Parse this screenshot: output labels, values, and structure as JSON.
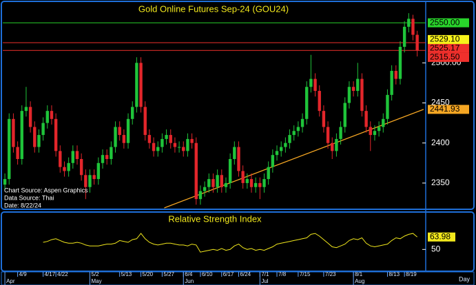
{
  "chart_data": [
    {
      "type": "candlestick",
      "title": "Gold Online Futures Sep-24 (GOU24)",
      "xlim": [
        -0.5,
        99
      ],
      "ylim": [
        2319,
        2575
      ],
      "yticks": [
        2350,
        2400,
        2450,
        {
          "value": 2500,
          "label": "2500.00"
        }
      ],
      "xticks": [
        {
          "value": 3,
          "label": "4/9"
        },
        {
          "value": 9,
          "label": "4/17"
        },
        {
          "value": 12,
          "label": "4/22"
        },
        {
          "value": 20,
          "label": "5/2"
        },
        {
          "value": 27,
          "label": "5/13"
        },
        {
          "value": 32,
          "label": "5/20"
        },
        {
          "value": 37,
          "label": "5/27"
        },
        {
          "value": 42,
          "label": "6/4"
        },
        {
          "value": 46,
          "label": "6/10"
        },
        {
          "value": 51,
          "label": "6/17"
        },
        {
          "value": 55,
          "label": "6/24"
        },
        {
          "value": 60,
          "label": "7/1"
        },
        {
          "value": 64,
          "label": "7/8"
        },
        {
          "value": 69,
          "label": "7/15"
        },
        {
          "value": 75,
          "label": "7/23"
        },
        {
          "value": 82,
          "label": "8/1"
        },
        {
          "value": 90,
          "label": "8/13"
        },
        {
          "value": 94,
          "label": "8/19"
        }
      ],
      "months": [
        {
          "value": 0,
          "label": "Apr"
        },
        {
          "value": 20,
          "label": "May"
        },
        {
          "value": 42,
          "label": "Jun"
        },
        {
          "value": 60,
          "label": "Jul"
        },
        {
          "value": 82,
          "label": "Aug"
        }
      ],
      "xlabel": "Day",
      "up_color": "#1fc43a",
      "down_color": "#e3262b",
      "open": [
        2348,
        2355,
        2430,
        2395,
        2380,
        2440,
        2445,
        2420,
        2395,
        2410,
        2425,
        2440,
        2430,
        2390,
        2370,
        2365,
        2375,
        2390,
        2380,
        2360,
        2345,
        2360,
        2355,
        2375,
        2385,
        2380,
        2395,
        2420,
        2410,
        2400,
        2430,
        2445,
        2500,
        2445,
        2410,
        2400,
        2390,
        2395,
        2405,
        2410,
        2400,
        2395,
        2395,
        2390,
        2405,
        2400,
        2330,
        2340,
        2345,
        2355,
        2345,
        2360,
        2345,
        2350,
        2380,
        2395,
        2365,
        2350,
        2355,
        2345,
        2350,
        2345,
        2355,
        2370,
        2385,
        2390,
        2395,
        2400,
        2410,
        2415,
        2420,
        2430,
        2470,
        2480,
        2465,
        2440,
        2420,
        2400,
        2390,
        2405,
        2420,
        2450,
        2470,
        2465,
        2480,
        2440,
        2420,
        2410,
        2415,
        2420,
        2430,
        2460,
        2490,
        2480,
        2520,
        2545,
        2555,
        2535
      ],
      "high": [
        2362,
        2437,
        2437,
        2402,
        2447,
        2470,
        2452,
        2427,
        2417,
        2432,
        2447,
        2447,
        2437,
        2397,
        2377,
        2382,
        2397,
        2397,
        2387,
        2367,
        2367,
        2367,
        2382,
        2392,
        2392,
        2402,
        2427,
        2427,
        2417,
        2437,
        2452,
        2507,
        2507,
        2452,
        2417,
        2407,
        2402,
        2412,
        2417,
        2417,
        2407,
        2402,
        2402,
        2412,
        2412,
        2407,
        2347,
        2352,
        2362,
        2362,
        2367,
        2367,
        2357,
        2387,
        2402,
        2402,
        2372,
        2362,
        2362,
        2357,
        2357,
        2362,
        2377,
        2392,
        2397,
        2402,
        2407,
        2417,
        2422,
        2427,
        2437,
        2477,
        2510,
        2487,
        2472,
        2447,
        2427,
        2407,
        2412,
        2427,
        2457,
        2477,
        2477,
        2500,
        2487,
        2447,
        2427,
        2422,
        2427,
        2437,
        2467,
        2497,
        2497,
        2527,
        2552,
        2562,
        2560,
        2540
      ],
      "low": [
        2341,
        2348,
        2388,
        2373,
        2373,
        2433,
        2413,
        2388,
        2388,
        2403,
        2418,
        2423,
        2383,
        2363,
        2358,
        2358,
        2368,
        2373,
        2353,
        2330,
        2338,
        2348,
        2348,
        2368,
        2373,
        2373,
        2388,
        2403,
        2393,
        2393,
        2423,
        2438,
        2438,
        2403,
        2393,
        2383,
        2383,
        2388,
        2398,
        2393,
        2388,
        2388,
        2383,
        2383,
        2393,
        2323,
        2323,
        2333,
        2338,
        2338,
        2338,
        2338,
        2338,
        2343,
        2373,
        2358,
        2343,
        2343,
        2338,
        2338,
        2330,
        2338,
        2348,
        2363,
        2378,
        2383,
        2388,
        2393,
        2403,
        2408,
        2413,
        2423,
        2463,
        2458,
        2433,
        2413,
        2393,
        2380,
        2383,
        2398,
        2413,
        2443,
        2458,
        2458,
        2433,
        2413,
        2390,
        2403,
        2408,
        2413,
        2423,
        2453,
        2473,
        2473,
        2513,
        2538,
        2528,
        2508
      ],
      "close": [
        2355,
        2430,
        2395,
        2380,
        2440,
        2445,
        2420,
        2395,
        2410,
        2425,
        2440,
        2430,
        2390,
        2370,
        2365,
        2375,
        2390,
        2380,
        2360,
        2345,
        2360,
        2355,
        2375,
        2385,
        2380,
        2395,
        2420,
        2410,
        2400,
        2430,
        2445,
        2500,
        2445,
        2410,
        2400,
        2390,
        2395,
        2405,
        2410,
        2400,
        2395,
        2395,
        2390,
        2405,
        2400,
        2330,
        2340,
        2345,
        2355,
        2345,
        2360,
        2345,
        2350,
        2380,
        2395,
        2365,
        2350,
        2355,
        2345,
        2350,
        2345,
        2355,
        2370,
        2385,
        2390,
        2395,
        2400,
        2410,
        2415,
        2420,
        2430,
        2470,
        2480,
        2465,
        2440,
        2420,
        2400,
        2390,
        2405,
        2420,
        2450,
        2470,
        2465,
        2480,
        2440,
        2420,
        2410,
        2415,
        2420,
        2430,
        2460,
        2490,
        2480,
        2520,
        2545,
        2555,
        2535,
        2515.5
      ],
      "levels": [
        {
          "value": 2550,
          "label": "2550.00",
          "color": "#29d42b",
          "line": true
        },
        {
          "value": 2529.1,
          "label": "2529.10",
          "color": "#f7f21a",
          "line": false
        },
        {
          "value": 2525.17,
          "label": "2525.17",
          "color": "#f0302c",
          "line": true
        },
        {
          "value": 2515.5,
          "label": "2515.50",
          "color": "#f0302c",
          "line": true
        }
      ],
      "trendline": {
        "x": [
          37.5,
          98.5
        ],
        "values": [
          2319,
          2441.93
        ],
        "color": "#f5a623"
      },
      "notes": [
        "Chart Source: Aspen Graphics",
        "Data Source: Thai",
        "Date: 8/22/24"
      ]
    },
    {
      "type": "line",
      "title": "Relative Strength Index",
      "xlim": [
        -0.5,
        99
      ],
      "ylim": [
        27,
        89
      ],
      "yticks": [
        50
      ],
      "series": [
        {
          "color": "#f2e81c",
          "values": [
            null,
            null,
            null,
            null,
            null,
            null,
            null,
            null,
            null,
            58,
            59,
            61,
            62,
            60,
            58,
            57,
            57,
            58,
            57,
            55,
            54,
            54,
            54,
            55,
            56,
            56,
            57,
            60,
            59,
            58,
            61,
            62,
            68,
            62,
            58,
            56,
            55,
            56,
            57,
            57,
            56,
            55,
            55,
            54,
            56,
            55,
            47,
            48,
            49,
            50,
            49,
            51,
            49,
            50,
            54,
            56,
            52,
            50,
            51,
            49,
            50,
            49,
            51,
            53,
            56,
            57,
            58,
            59,
            60,
            61,
            62,
            63,
            67,
            68,
            65,
            61,
            57,
            53,
            52,
            54,
            56,
            60,
            62,
            61,
            63,
            57,
            54,
            53,
            54,
            55,
            56,
            60,
            63,
            62,
            65,
            67,
            68,
            63.98
          ]
        }
      ]
    }
  ]
}
